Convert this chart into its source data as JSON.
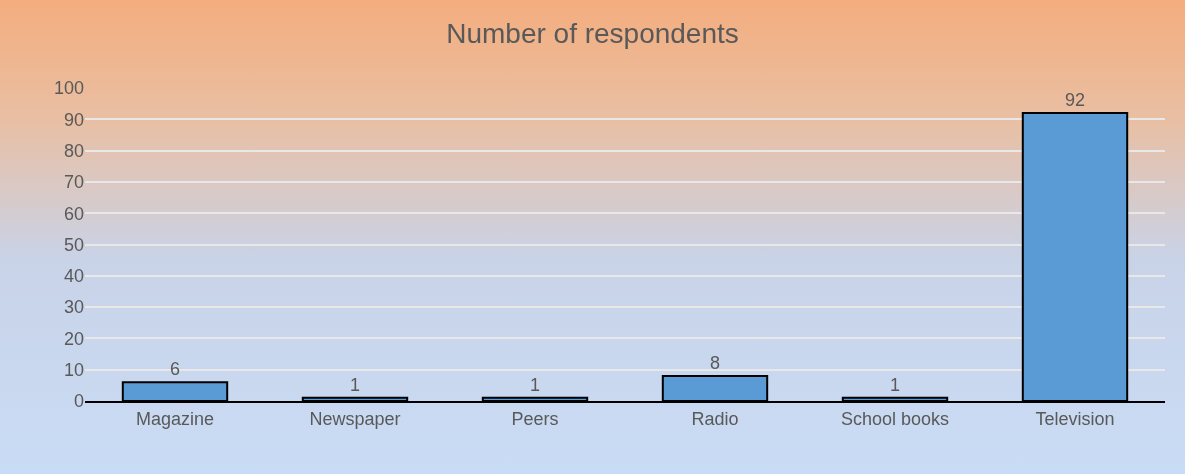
{
  "chart_data": {
    "type": "bar",
    "title": "Number of respondents",
    "categories": [
      "Magazine",
      "Newspaper",
      "Peers",
      "Radio",
      "School books",
      "Television"
    ],
    "values": [
      6,
      1,
      1,
      8,
      1,
      92
    ],
    "color": "#5b9bd5",
    "ylim": [
      0,
      100
    ],
    "yticks": [
      0,
      10,
      20,
      30,
      40,
      50,
      60,
      70,
      80,
      90,
      100
    ],
    "grid": "y",
    "data_labels": true
  }
}
